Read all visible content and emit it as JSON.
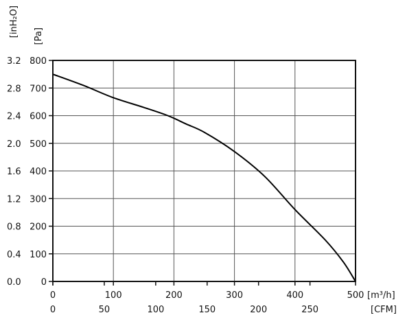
{
  "chart_data": {
    "type": "line",
    "title": "",
    "x_primary": {
      "unit_label": "[m³/h]",
      "range": [
        0,
        500
      ],
      "ticks": [
        0,
        100,
        200,
        300,
        400,
        500
      ],
      "tick_labels": [
        "0",
        "100",
        "200",
        "300",
        "400",
        "500"
      ]
    },
    "x_secondary": {
      "unit_label": "[CFM]",
      "tick_labels": [
        "0",
        "50",
        "100",
        "150",
        "200",
        "250"
      ]
    },
    "y_primary": {
      "unit_label": "[Pa]",
      "range": [
        0,
        800
      ],
      "ticks": [
        0,
        100,
        200,
        300,
        400,
        500,
        600,
        700,
        800
      ],
      "tick_labels": [
        "0",
        "100",
        "200",
        "300",
        "400",
        "500",
        "600",
        "700",
        "800"
      ]
    },
    "y_secondary": {
      "unit_label": "[inH₂O]",
      "tick_labels": [
        "0.0",
        "0.4",
        "0.8",
        "1.2",
        "1.6",
        "2.0",
        "2.4",
        "2.8",
        "3.2"
      ]
    },
    "grid": true,
    "series": [
      {
        "x": [
          0,
          50,
          100,
          150,
          190,
          220,
          250,
          300,
          350,
          400,
          450,
          480,
          500
        ],
        "y": [
          750,
          710,
          665,
          630,
          600,
          570,
          540,
          470,
          380,
          260,
          150,
          70,
          0
        ]
      }
    ]
  }
}
